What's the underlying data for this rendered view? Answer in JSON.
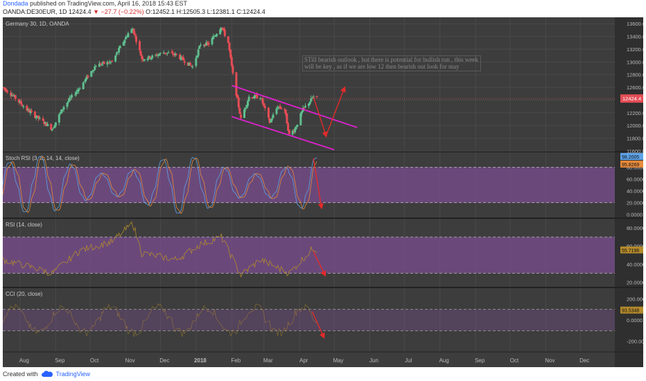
{
  "header": {
    "author": "Dondada",
    "published": "published on TradingView.com, April 16, 2018 15:43 EST",
    "symbol": "OANDA:DE30EUR, 1D",
    "last": "12424.4",
    "change": "−27.7 (−0.22%)",
    "ohlc": "O:12452.1 H:12505.3 L:12381.1 C:12424.4"
  },
  "footer": {
    "created_with": "Created with",
    "brand": "TradingView"
  },
  "colors": {
    "background": "#3d3d3d",
    "up": "#5fbf8e",
    "down": "#e54d55",
    "channel": "#e020d0",
    "arrow": "#e52a2a",
    "band": "#7e4f94",
    "rsi_line": "#b48a2c"
  },
  "chart_data": [
    {
      "type": "candlestick",
      "title": "Germany 30, 1D, OANDA",
      "ylim": [
        11600,
        13700
      ],
      "yticks": [
        "13600.0",
        "13400.0",
        "13200.0",
        "13000.0",
        "12800.0",
        "12600.0",
        "12400.0",
        "12200.0",
        "12000.0",
        "11800.0",
        "11600.0"
      ],
      "xticks": [
        "Aug",
        "Sep",
        "Oct",
        "Nov",
        "Dec",
        "2018",
        "Feb",
        "Mar",
        "Apr",
        "May",
        "Jun",
        "Jul",
        "Aug",
        "Sep",
        "Oct",
        "Nov",
        "Dec"
      ],
      "last_price_label": "12424.4",
      "anchors": [
        [
          "2017-07-17",
          12600
        ],
        [
          "2017-07-24",
          12500
        ],
        [
          "2017-08-07",
          12250
        ],
        [
          "2017-08-18",
          12100
        ],
        [
          "2017-08-29",
          11950
        ],
        [
          "2017-09-08",
          12300
        ],
        [
          "2017-09-22",
          12600
        ],
        [
          "2017-10-06",
          12950
        ],
        [
          "2017-10-20",
          13000
        ],
        [
          "2017-11-03",
          13450
        ],
        [
          "2017-11-07",
          13520
        ],
        [
          "2017-11-15",
          13050
        ],
        [
          "2017-11-24",
          13080
        ],
        [
          "2017-12-04",
          13150
        ],
        [
          "2017-12-15",
          13110
        ],
        [
          "2017-12-29",
          12920
        ],
        [
          "2018-01-05",
          13280
        ],
        [
          "2018-01-12",
          13280
        ],
        [
          "2018-01-23",
          13560
        ],
        [
          "2018-01-29",
          13300
        ],
        [
          "2018-02-02",
          12800
        ],
        [
          "2018-02-09",
          12100
        ],
        [
          "2018-02-16",
          12450
        ],
        [
          "2018-02-26",
          12450
        ],
        [
          "2018-03-06",
          12050
        ],
        [
          "2018-03-13",
          12300
        ],
        [
          "2018-03-19",
          12250
        ],
        [
          "2018-03-23",
          11850
        ],
        [
          "2018-03-28",
          11950
        ],
        [
          "2018-04-04",
          12250
        ],
        [
          "2018-04-13",
          12450
        ],
        [
          "2018-04-16",
          12424
        ]
      ],
      "annotation": "STill bearish outlook , but there is potential for bullish run , this week will be key , as if we are low 12 then bearish out look for may",
      "channel": {
        "upper": [
          [
            "2018-02-01",
            12630
          ],
          [
            "2018-05-21",
            11970
          ]
        ],
        "lower": [
          [
            "2018-02-01",
            12140
          ],
          [
            "2018-05-01",
            11620
          ]
        ]
      },
      "arrows": [
        [
          [
            "2018-04-13",
            12450
          ],
          [
            "2018-04-24",
            11840
          ],
          [
            "2018-05-10",
            12590
          ]
        ]
      ]
    },
    {
      "type": "line",
      "title": "Stoch RSI (3, 3, 14, 14, close)",
      "ylim": [
        -5,
        105
      ],
      "yticks": [
        "80.0000",
        "60.0000",
        "40.0000",
        "20.0000",
        "0.0000"
      ],
      "band": [
        20,
        80
      ],
      "series": [
        {
          "name": "K",
          "last": "98.2005",
          "color": "#5ea3e8"
        },
        {
          "name": "D",
          "last": "95.8269",
          "color": "#e88b3c"
        }
      ],
      "arrow": [
        [
          "2018-04-13",
          95
        ],
        [
          "2018-04-20",
          12
        ]
      ]
    },
    {
      "type": "line",
      "title": "RSI (14, close)",
      "ylim": [
        15,
        90
      ],
      "yticks": [
        "80.0000",
        "60.0000",
        "40.0000",
        "20.0000"
      ],
      "band": [
        30,
        70
      ],
      "series": [
        {
          "name": "RSI",
          "last": "55.7196",
          "color": "#b48a2c"
        }
      ],
      "anchors": [
        [
          "2017-07-17",
          45
        ],
        [
          "2017-08-07",
          38
        ],
        [
          "2017-08-29",
          30
        ],
        [
          "2017-09-22",
          55
        ],
        [
          "2017-10-20",
          65
        ],
        [
          "2017-11-07",
          85
        ],
        [
          "2017-11-15",
          52
        ],
        [
          "2017-12-15",
          45
        ],
        [
          "2018-01-05",
          62
        ],
        [
          "2018-01-23",
          70
        ],
        [
          "2018-02-09",
          28
        ],
        [
          "2018-02-26",
          45
        ],
        [
          "2018-03-23",
          30
        ],
        [
          "2018-04-13",
          58
        ],
        [
          "2018-04-16",
          55.7
        ]
      ],
      "arrow": [
        [
          "2018-04-13",
          54
        ],
        [
          "2018-04-23",
          28
        ]
      ]
    },
    {
      "type": "line",
      "title": "CCI (20, close)",
      "ylim": [
        -300,
        300
      ],
      "yticks": [
        "200.0000",
        "0.0000",
        "-200.0000"
      ],
      "band": [
        -100,
        100
      ],
      "series": [
        {
          "name": "CCI",
          "last": "93.5348",
          "color": "#b48a2c"
        }
      ],
      "arrow": [
        [
          "2018-04-12",
          80
        ],
        [
          "2018-04-22",
          -160
        ]
      ]
    }
  ]
}
